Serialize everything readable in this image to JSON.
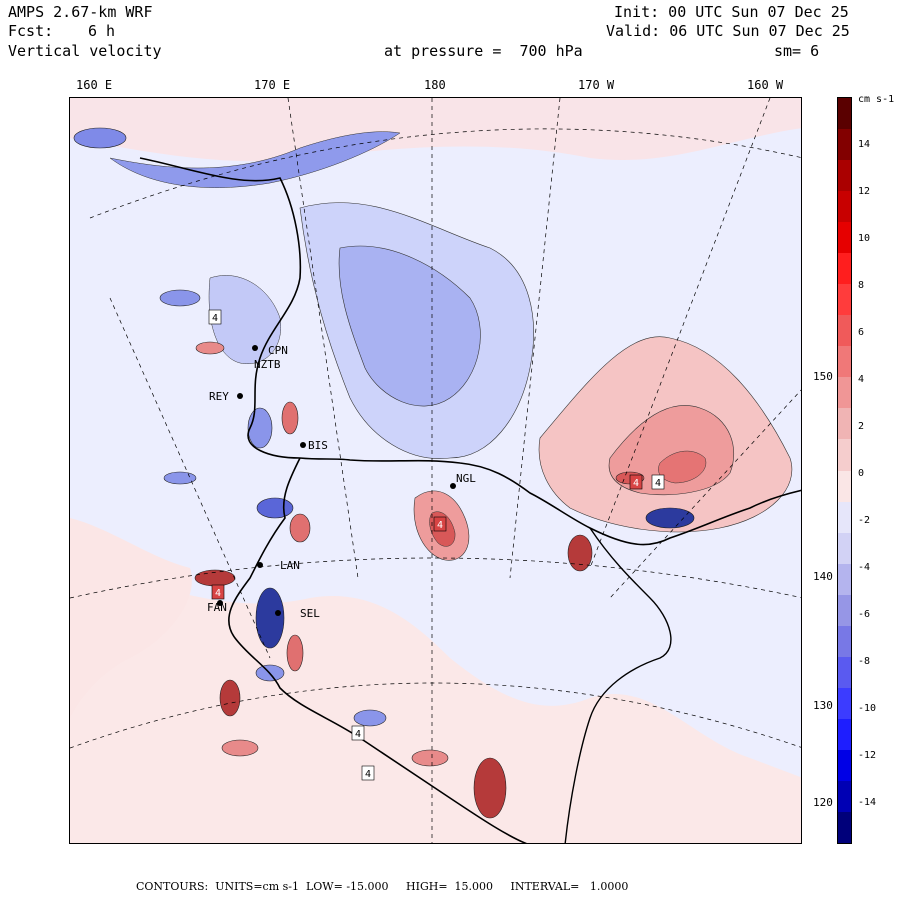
{
  "header": {
    "model": "AMPS 2.67-km WRF",
    "fcst_label": "Fcst:",
    "fcst_value": "6 h",
    "field": "Vertical velocity",
    "init": "Init: 00 UTC Sun 07 Dec 25",
    "valid": "Valid: 06 UTC Sun 07 Dec 25",
    "level": "at pressure =  700 hPa",
    "smoothing": "sm= 6"
  },
  "map": {
    "lon_labels": [
      "160 E",
      "170 E",
      "180",
      "170 W",
      "160 W"
    ],
    "lat_labels": [
      "150 W",
      "140 W",
      "130 W",
      "120 W"
    ],
    "stations": [
      "CPN",
      "NZTB",
      "REY",
      "BIS",
      "NGL",
      "LAN",
      "SEL",
      "FAN"
    ],
    "contour_markers": [
      "4",
      "4",
      "4",
      "4",
      "4",
      "4",
      "4"
    ]
  },
  "colorbar": {
    "units": "cm s-1",
    "ticks": [
      "14",
      "12",
      "10",
      "8",
      "6",
      "4",
      "2",
      "0",
      "-2",
      "-4",
      "-6",
      "-8",
      "-10",
      "-12",
      "-14"
    ],
    "colors": [
      "#00007a",
      "#0000b4",
      "#0000e6",
      "#1e1eff",
      "#3c3cff",
      "#5a5af0",
      "#7878e6",
      "#9696e6",
      "#b4b4ee",
      "#d2d2f5",
      "#e6e6fa",
      "#fae6e6",
      "#f5cdcd",
      "#f0b4b4",
      "#f09696",
      "#f07878",
      "#f05a5a",
      "#ff3c3c",
      "#ff1e1e",
      "#e60000",
      "#c80000",
      "#aa0000",
      "#820000",
      "#5a0000"
    ]
  },
  "footer": {
    "contours": "CONTOURS:  UNITS=cm s-1  LOW= -15.000     HIGH=  15.000     INTERVAL=   1.0000"
  }
}
